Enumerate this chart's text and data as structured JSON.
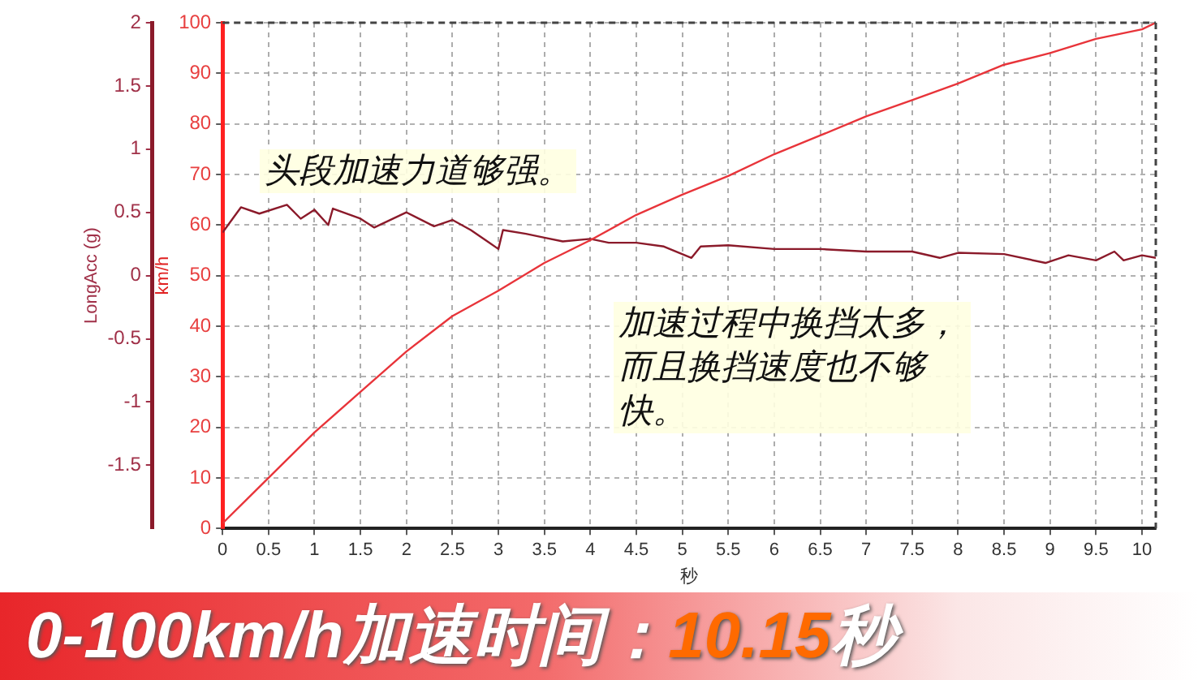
{
  "chart_data": {
    "type": "line",
    "title": "0-100km/h加速时间：10.15秒",
    "xlabel": "秒",
    "ylabel": "km/h",
    "y2label": "LongAcc (g)",
    "annotations": [
      "头段加速力道够强。",
      "加速过程中换挡太多，而且换挡速度也不够快。"
    ],
    "xlim": [
      0,
      10.15
    ],
    "xticks": [
      0,
      0.5,
      1,
      1.5,
      2,
      2.5,
      3,
      3.5,
      4,
      4.5,
      5,
      5.5,
      6,
      6.5,
      7,
      7.5,
      8,
      8.5,
      9,
      9.5,
      10
    ],
    "ylim": [
      0,
      100
    ],
    "yticks": [
      0,
      10,
      20,
      30,
      40,
      50,
      60,
      70,
      80,
      90,
      100
    ],
    "y2lim": [
      -2,
      2
    ],
    "y2ticks": [
      -1.5,
      -1,
      -0.5,
      0,
      0.5,
      1,
      1.5,
      2
    ],
    "grid": true,
    "line_style": "solid",
    "marker": "none",
    "series": [
      {
        "color": "#e8343a",
        "x": [
          0,
          0.5,
          1,
          1.5,
          2,
          2.5,
          3,
          3.5,
          4,
          4.5,
          5,
          5.5,
          6,
          6.5,
          7,
          7.5,
          8,
          8.5,
          9,
          9.5,
          10,
          10.15
        ],
        "values": [
          1,
          10,
          19,
          27,
          35,
          42,
          47,
          52.5,
          57,
          62,
          66,
          69.7,
          74,
          77.7,
          81.5,
          84.7,
          88,
          91.7,
          94,
          96.8,
          98.7,
          100
        ]
      },
      {
        "color": "#8b1a2a",
        "axis": "y2",
        "x": [
          0,
          0.2,
          0.4,
          0.7,
          0.85,
          1,
          1.15,
          1.2,
          1.5,
          1.65,
          2,
          2.3,
          2.5,
          2.7,
          2.9,
          3,
          3.05,
          3.3,
          3.5,
          3.7,
          4,
          4.2,
          4.5,
          4.8,
          5.1,
          5.2,
          5.5,
          6,
          6.5,
          7,
          7.5,
          7.8,
          8,
          8.5,
          8.95,
          9.2,
          9.5,
          9.7,
          9.8,
          10,
          10.15
        ],
        "values": [
          0.34,
          0.54,
          0.49,
          0.56,
          0.45,
          0.52,
          0.4,
          0.53,
          0.45,
          0.38,
          0.5,
          0.39,
          0.44,
          0.36,
          0.26,
          0.21,
          0.36,
          0.33,
          0.3,
          0.27,
          0.29,
          0.26,
          0.26,
          0.23,
          0.14,
          0.23,
          0.24,
          0.21,
          0.21,
          0.19,
          0.19,
          0.14,
          0.18,
          0.17,
          0.1,
          0.16,
          0.12,
          0.19,
          0.12,
          0.16,
          0.14
        ]
      }
    ]
  }
}
